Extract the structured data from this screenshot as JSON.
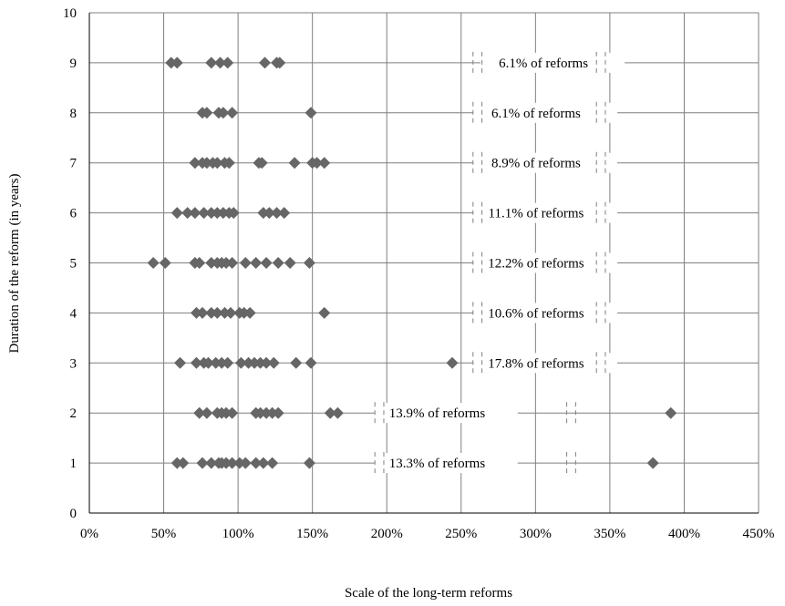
{
  "chart_data": {
    "type": "scatter",
    "xlabel": "Scale of the long-term reforms",
    "ylabel": "Duration of the reform (in years)",
    "xlim": [
      0,
      4.5
    ],
    "ylim": [
      0,
      10
    ],
    "x_ticks": [
      0,
      0.5,
      1.0,
      1.5,
      2.0,
      2.5,
      3.0,
      3.5,
      4.0,
      4.5
    ],
    "x_tick_labels": [
      "0%",
      "50%",
      "100%",
      "150%",
      "200%",
      "250%",
      "300%",
      "350%",
      "400%",
      "450%"
    ],
    "y_ticks": [
      0,
      1,
      2,
      3,
      4,
      5,
      6,
      7,
      8,
      9,
      10
    ],
    "y_tick_labels": [
      "0",
      "1",
      "2",
      "3",
      "4",
      "5",
      "6",
      "7",
      "8",
      "9",
      "10"
    ],
    "grid": true,
    "marker_color": "#666666",
    "series": [
      {
        "points": [
          {
            "y": 1,
            "x": [
              0.59,
              0.63,
              0.76,
              0.82,
              0.87,
              0.89,
              0.92,
              0.96,
              1.01,
              1.05,
              1.12,
              1.17,
              1.23,
              1.48,
              3.79
            ]
          },
          {
            "y": 2,
            "x": [
              0.74,
              0.79,
              0.86,
              0.89,
              0.92,
              0.96,
              1.12,
              1.15,
              1.19,
              1.23,
              1.27,
              1.62,
              1.67,
              3.91
            ]
          },
          {
            "y": 3,
            "x": [
              0.61,
              0.72,
              0.77,
              0.8,
              0.85,
              0.89,
              0.93,
              1.02,
              1.07,
              1.11,
              1.15,
              1.19,
              1.24,
              1.39,
              1.49,
              2.44
            ]
          },
          {
            "y": 4,
            "x": [
              0.72,
              0.76,
              0.82,
              0.86,
              0.91,
              0.95,
              1.01,
              1.04,
              1.08,
              1.58
            ]
          },
          {
            "y": 5,
            "x": [
              0.43,
              0.51,
              0.71,
              0.74,
              0.82,
              0.86,
              0.89,
              0.92,
              0.96,
              1.05,
              1.12,
              1.19,
              1.27,
              1.35,
              1.48
            ]
          },
          {
            "y": 6,
            "x": [
              0.59,
              0.66,
              0.71,
              0.77,
              0.82,
              0.86,
              0.9,
              0.94,
              0.97,
              1.17,
              1.21,
              1.26,
              1.31
            ]
          },
          {
            "y": 7,
            "x": [
              0.71,
              0.76,
              0.79,
              0.83,
              0.86,
              0.91,
              0.94,
              1.14,
              1.16,
              1.38,
              1.5,
              1.53,
              1.58
            ]
          },
          {
            "y": 8,
            "x": [
              0.76,
              0.79,
              0.87,
              0.9,
              0.96,
              1.49
            ]
          },
          {
            "y": 9,
            "x": [
              0.55,
              0.59,
              0.82,
              0.88,
              0.93,
              1.18,
              1.26,
              1.28
            ]
          }
        ]
      }
    ],
    "annotations": [
      {
        "y": 9,
        "text": "6.1%  of reforms",
        "x_start": 2.63,
        "x_end": 3.6,
        "line_x": [
          2.58,
          2.64,
          3.41,
          3.47
        ]
      },
      {
        "y": 8,
        "text": "6.1%  of reforms",
        "x_start": 2.58,
        "x_end": 3.55,
        "line_x": [
          2.58,
          2.64,
          3.41,
          3.47
        ]
      },
      {
        "y": 7,
        "text": "8.9%  of reforms",
        "x_start": 2.58,
        "x_end": 3.55,
        "line_x": [
          2.58,
          2.64,
          3.41,
          3.47
        ]
      },
      {
        "y": 6,
        "text": "11.1%  of reforms",
        "x_start": 2.58,
        "x_end": 3.55,
        "line_x": [
          2.58,
          2.64,
          3.41,
          3.47
        ]
      },
      {
        "y": 5,
        "text": "12.2%  of reforms",
        "x_start": 2.58,
        "x_end": 3.55,
        "line_x": [
          2.58,
          2.64,
          3.41,
          3.47
        ]
      },
      {
        "y": 4,
        "text": "10.6%  of reforms",
        "x_start": 2.58,
        "x_end": 3.55,
        "line_x": [
          2.58,
          2.64,
          3.41,
          3.47
        ]
      },
      {
        "y": 3,
        "text": "17.8%  of reforms",
        "x_start": 2.58,
        "x_end": 3.55,
        "line_x": [
          2.58,
          2.64,
          3.41,
          3.47
        ]
      },
      {
        "y": 2,
        "text": "13.9%  of reforms",
        "x_start": 1.92,
        "x_end": 2.88,
        "line_x": [
          1.92,
          1.98,
          3.21,
          3.27
        ]
      },
      {
        "y": 1,
        "text": "13.3%  of reforms",
        "x_start": 1.92,
        "x_end": 2.88,
        "line_x": [
          1.92,
          1.98,
          3.21,
          3.27
        ]
      }
    ]
  }
}
